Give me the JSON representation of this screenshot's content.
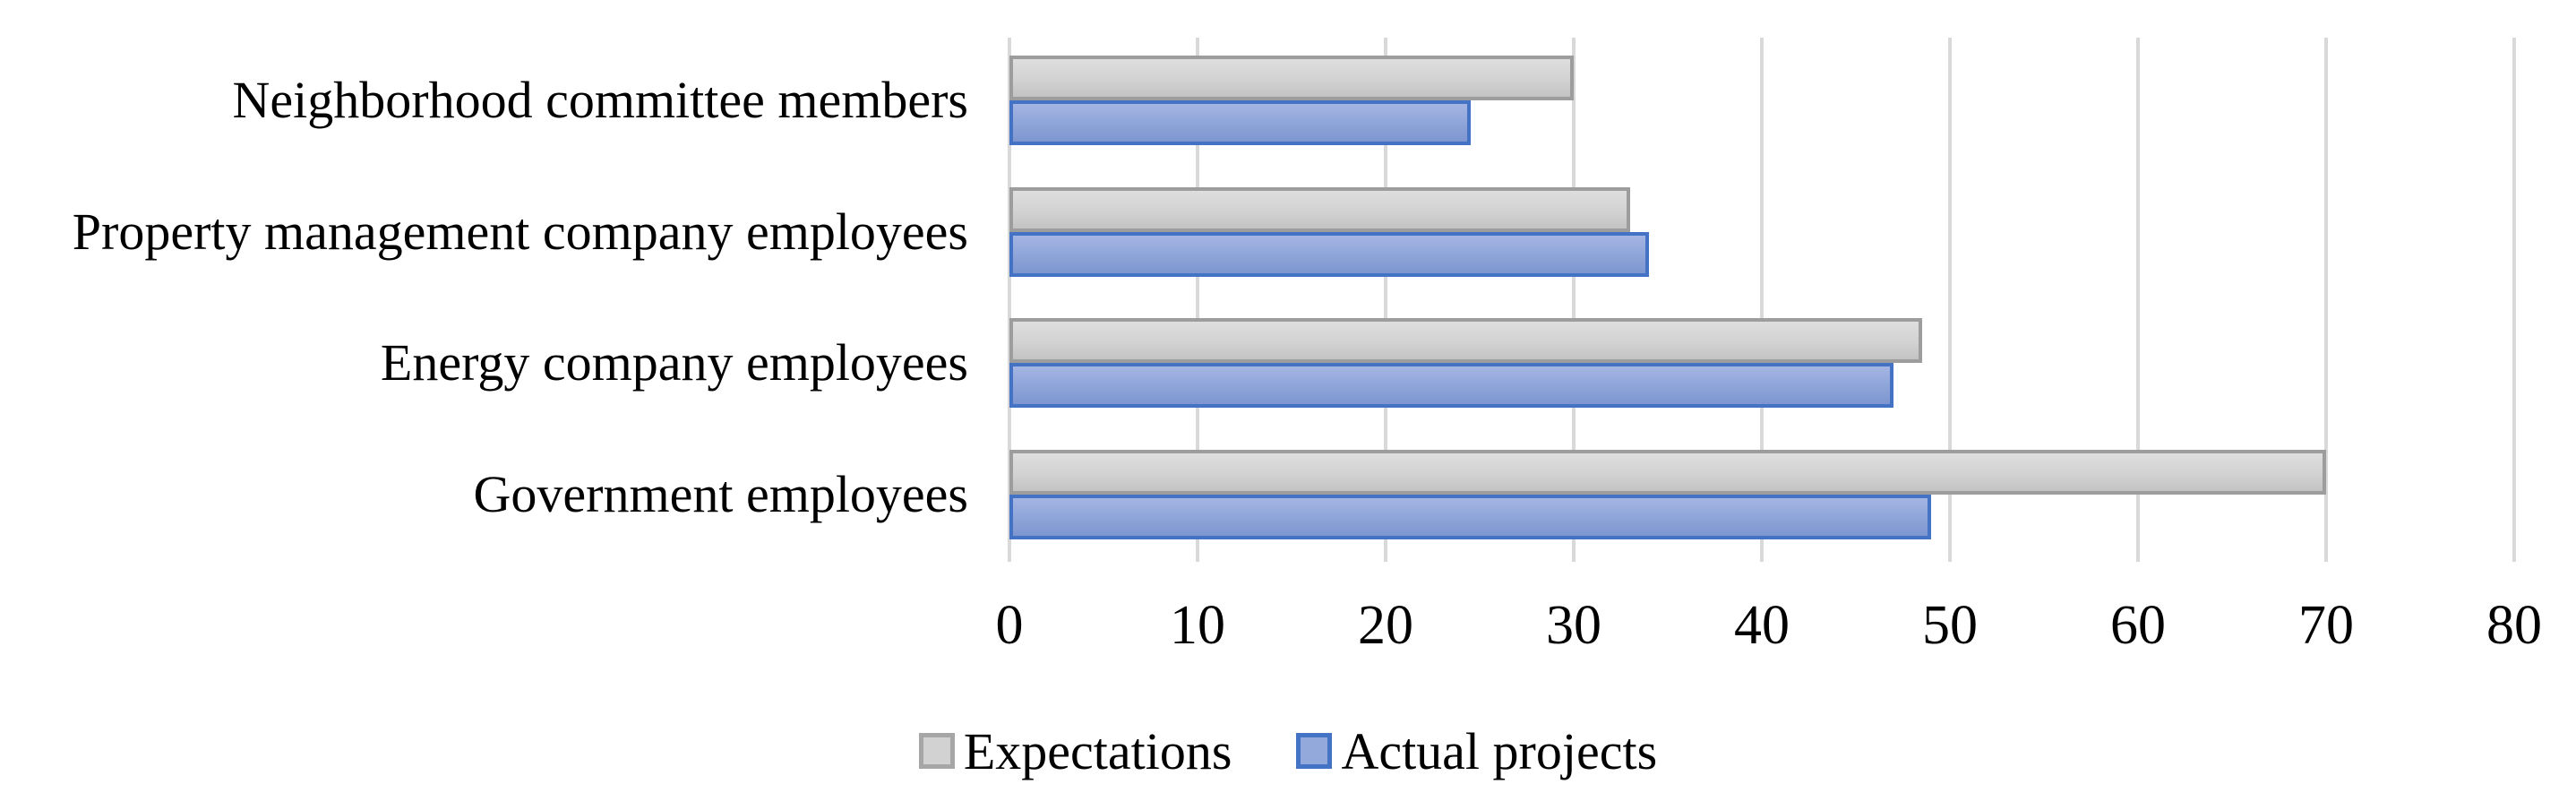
{
  "chart_data": {
    "type": "bar",
    "orientation": "horizontal",
    "title": "",
    "xlabel": "",
    "ylabel": "",
    "categories": [
      "Neighborhood committee members",
      "Property management company employees",
      "Energy company employees",
      "Government employees"
    ],
    "series": [
      {
        "name": "Expectations",
        "values": [
          30,
          33,
          48.5,
          70
        ],
        "fill": "#d2d2d2",
        "border": "#9d9d9d"
      },
      {
        "name": "Actual projects",
        "values": [
          24.5,
          34,
          47,
          49
        ],
        "fill": "#8da4d8",
        "border": "#4472c4"
      }
    ],
    "x_axis": {
      "min": 0,
      "max": 80,
      "tick_step": 10,
      "tick_labels": [
        "0",
        "10",
        "20",
        "30",
        "40",
        "50",
        "60",
        "70",
        "80"
      ]
    },
    "grid": "vertical gridlines on",
    "gridline_color": "#d9d9d9",
    "legend": {
      "position": "bottom-center",
      "entries": [
        "Expectations",
        "Actual projects"
      ]
    },
    "text_color": "#000000",
    "background_color": "#ffffff"
  }
}
